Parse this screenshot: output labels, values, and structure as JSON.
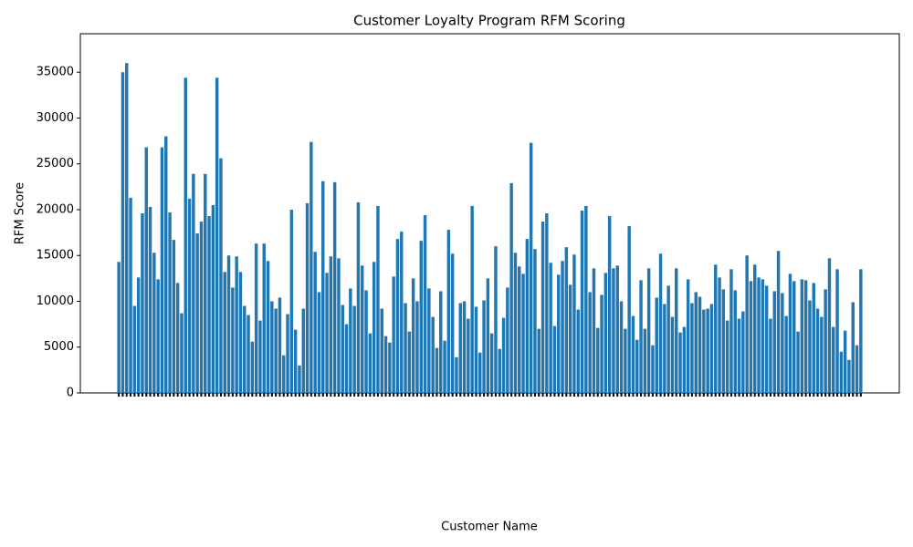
{
  "chart_data": {
    "type": "bar",
    "title": "Customer Loyalty Program RFM Scoring",
    "x_label": "Customer Name",
    "y_label": "RFM Score",
    "color": "#1f77b4",
    "ylim": [
      0,
      39200
    ],
    "yticks": [
      0,
      5000,
      10000,
      15000,
      20000,
      25000,
      30000,
      35000
    ],
    "categories": [
      null,
      null,
      null,
      null,
      null,
      null,
      null,
      null,
      null,
      null,
      null,
      null,
      null,
      null,
      null,
      null,
      null,
      null,
      null,
      null,
      null,
      null,
      null,
      null,
      null,
      null,
      null,
      null,
      null,
      null,
      null,
      null,
      null,
      null,
      null,
      null,
      null,
      null,
      null,
      null,
      null,
      null,
      null,
      null,
      null,
      null,
      null,
      null,
      null,
      null,
      null,
      null,
      null,
      null,
      null,
      null,
      null,
      null,
      null,
      null,
      null,
      null,
      null,
      null,
      null,
      null,
      null,
      null,
      null,
      null,
      null,
      null,
      null,
      null,
      null,
      null,
      null,
      null,
      null,
      null,
      null,
      null,
      null,
      null,
      null,
      null,
      null,
      null,
      null,
      null,
      null,
      null,
      null,
      null,
      null,
      null,
      null,
      null,
      null,
      null,
      null,
      null,
      null,
      null,
      null,
      null,
      null,
      null,
      null,
      null,
      null,
      null,
      null,
      null,
      null,
      null,
      null,
      null,
      null,
      null,
      null,
      null,
      null,
      null,
      null,
      null,
      null,
      null,
      null,
      null,
      null,
      null,
      null,
      null,
      null,
      null,
      null,
      null,
      null,
      null,
      null,
      null,
      null,
      null,
      null,
      null,
      null,
      null,
      null,
      null,
      null,
      null,
      null,
      null,
      null,
      null,
      null,
      null,
      null,
      null,
      null,
      null,
      null,
      null,
      null,
      null,
      null,
      null,
      null,
      null,
      null,
      null,
      null,
      null,
      null,
      null,
      null,
      null,
      null,
      null,
      null,
      null,
      null,
      null,
      null,
      null,
      null,
      null,
      null,
      null
    ],
    "values": [
      14300,
      35000,
      36000,
      21300,
      9500,
      12600,
      19600,
      26800,
      20300,
      15300,
      12400,
      26800,
      28000,
      19700,
      16700,
      12000,
      8700,
      34400,
      21200,
      23900,
      17400,
      18700,
      23900,
      19300,
      20500,
      34400,
      25600,
      13200,
      15000,
      11500,
      14900,
      13200,
      9500,
      8500,
      5600,
      16300,
      7900,
      16300,
      14400,
      10000,
      9200,
      10400,
      4100,
      8600,
      20000,
      6900,
      3000,
      9200,
      20700,
      27400,
      15400,
      11000,
      23100,
      13100,
      14900,
      23000,
      14700,
      9600,
      7500,
      11400,
      9500,
      20800,
      13900,
      11200,
      6500,
      14300,
      20400,
      9200,
      6200,
      5500,
      12700,
      16800,
      17600,
      9800,
      6700,
      12500,
      10000,
      16600,
      19400,
      11400,
      8300,
      4900,
      11100,
      5700,
      17800,
      15200,
      3900,
      9800,
      10000,
      8100,
      20400,
      9400,
      4400,
      10100,
      12500,
      6500,
      16000,
      4800,
      8200,
      11500,
      22900,
      15300,
      13800,
      13000,
      16800,
      27300,
      15700,
      7000,
      18700,
      19600,
      14200,
      7300,
      12900,
      14400,
      15900,
      11800,
      15100,
      9100,
      19900,
      20400,
      11000,
      13600,
      7100,
      10700,
      13100,
      19300,
      13600,
      13900,
      10000,
      7000,
      18200,
      8400,
      5800,
      12300,
      7000,
      13600,
      5200,
      10400,
      15200,
      9700,
      11700,
      8300,
      13600,
      6600,
      7200,
      12400,
      9800,
      11000,
      10500,
      9100,
      9200,
      9700,
      14000,
      12600,
      11300,
      7900,
      13500,
      11200,
      8100,
      8900,
      15000,
      12200,
      14000,
      12600,
      12400,
      11700,
      8100,
      11100,
      15500,
      10900,
      8400,
      13000,
      12200,
      6700,
      12400,
      12300,
      10100,
      12000,
      9200,
      8300,
      11300,
      14700,
      7200,
      13500,
      4500,
      6800,
      3600,
      9900,
      5200,
      13500
    ]
  }
}
